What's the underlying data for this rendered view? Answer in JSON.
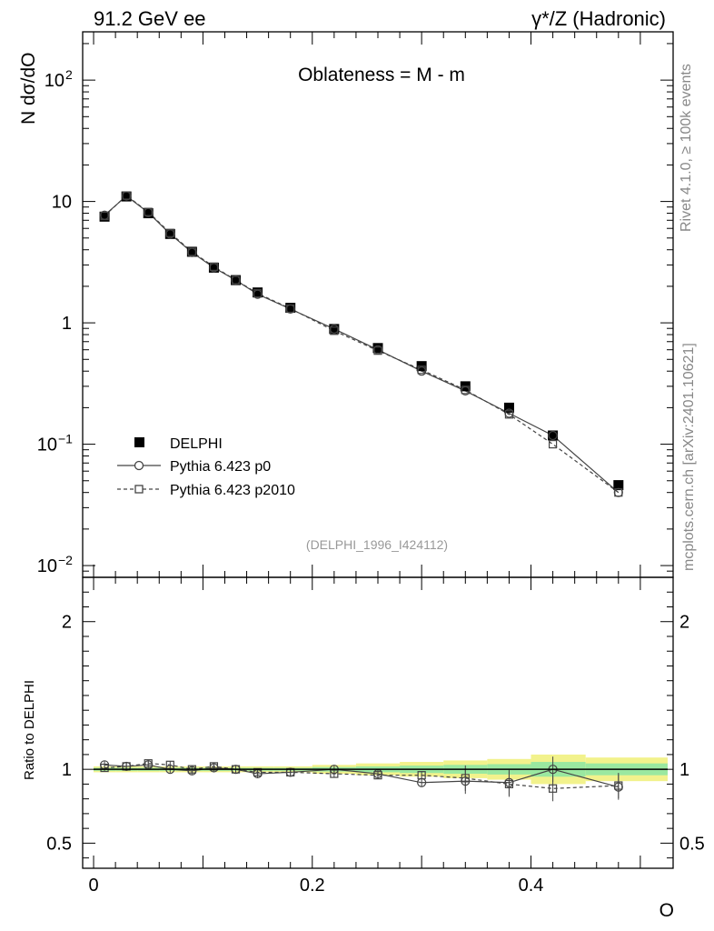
{
  "header": {
    "left": "91.2 GeV ee",
    "right": "γ*/Z (Hadronic)"
  },
  "side_labels": {
    "rivet": "Rivet 4.1.0, ≥ 100k events",
    "mcplots": "mcplots.cern.ch [arXiv:2401.10621]"
  },
  "chart_data": {
    "type": "line",
    "title": "Oblateness = M - m",
    "reference": "(DELPHI_1996_I424112)",
    "xlabel": "O",
    "ylabel": "N  dσ/dO",
    "xlim": [
      -0.01,
      0.53
    ],
    "x_ticks": [
      "0",
      "0.2",
      "0.4"
    ],
    "x_tick_values": [
      0,
      0.2,
      0.4
    ],
    "main": {
      "yscale": "log",
      "ylim": [
        0.008,
        250
      ],
      "y_ticks": [
        {
          "value": 100,
          "base": "10",
          "exp": "2"
        },
        {
          "value": 10,
          "base": "10",
          "exp": ""
        },
        {
          "value": 1,
          "base": "1",
          "exp": ""
        },
        {
          "value": 0.1,
          "base": "10",
          "exp": "−1"
        },
        {
          "value": 0.01,
          "base": "10",
          "exp": "−2"
        }
      ]
    },
    "ratio": {
      "ylabel": "Ratio to DELPHI",
      "ylim": [
        0.33,
        2.3
      ],
      "y_ticks": [
        "2",
        "1",
        "0.5"
      ],
      "y_tick_values": [
        2,
        1,
        0.5
      ]
    },
    "x": [
      0.01,
      0.03,
      0.05,
      0.07,
      0.09,
      0.11,
      0.13,
      0.15,
      0.18,
      0.22,
      0.26,
      0.3,
      0.34,
      0.38,
      0.42,
      0.48
    ],
    "data_band": [
      0.02,
      0.02,
      0.02,
      0.02,
      0.02,
      0.02,
      0.02,
      0.02,
      0.02,
      0.03,
      0.04,
      0.05,
      0.06,
      0.07,
      0.1,
      0.08
    ],
    "series": [
      {
        "name": "DELPHI",
        "style": "data",
        "values": [
          7.5,
          11.0,
          8.0,
          5.4,
          3.85,
          2.85,
          2.25,
          1.78,
          1.33,
          0.89,
          0.62,
          0.44,
          0.3,
          0.2,
          0.118,
          0.046
        ]
      },
      {
        "name": "Pythia 6.423 p0",
        "style": "solid-circle",
        "values": [
          7.7,
          11.1,
          8.1,
          5.4,
          3.8,
          2.85,
          2.25,
          1.72,
          1.3,
          0.89,
          0.6,
          0.4,
          0.275,
          0.18,
          0.118,
          0.04
        ],
        "ratio": [
          1.03,
          1.02,
          1.03,
          1.0,
          0.99,
          1.01,
          1.0,
          0.97,
          0.98,
          1.0,
          0.97,
          0.91,
          0.92,
          0.91,
          1.0,
          0.88
        ]
      },
      {
        "name": "Pythia 6.423 p2010",
        "style": "dashed-square",
        "values": [
          7.6,
          11.2,
          8.2,
          5.5,
          3.85,
          2.9,
          2.25,
          1.75,
          1.31,
          0.86,
          0.59,
          0.41,
          0.28,
          0.176,
          0.1,
          0.04
        ],
        "ratio": [
          1.01,
          1.02,
          1.04,
          1.03,
          1.0,
          1.02,
          1.0,
          0.98,
          0.98,
          0.97,
          0.96,
          0.96,
          0.94,
          0.9,
          0.87,
          0.89
        ]
      }
    ],
    "legend_position": "lower-left"
  },
  "colors": {
    "axis": "#000000",
    "mc": "#444444",
    "band_outer": "#f2f28c",
    "band_inner": "#9ae8a0"
  }
}
